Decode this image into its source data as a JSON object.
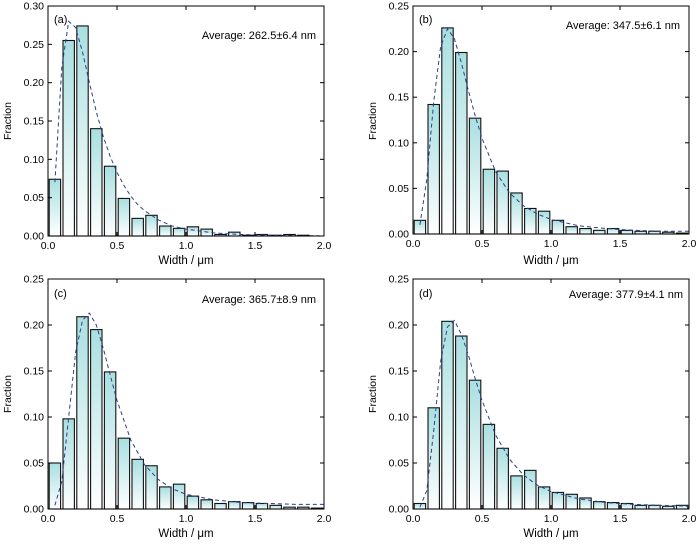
{
  "chart_data": [
    {
      "type": "bar",
      "panel_label": "(a)",
      "annotation": "Average: 262.5±6.4 nm",
      "xlabel": "Width / μm",
      "ylabel": "Fraction",
      "xlim": [
        0,
        2.0
      ],
      "ylim": [
        0,
        0.3
      ],
      "xticks": [
        "0.0",
        "0.5",
        "1.0",
        "1.5",
        "2.0"
      ],
      "yticks": [
        "0.00",
        "0.05",
        "0.10",
        "0.15",
        "0.20",
        "0.25",
        "0.30"
      ],
      "bin_width": 0.1,
      "x": [
        0.05,
        0.15,
        0.25,
        0.35,
        0.45,
        0.55,
        0.65,
        0.75,
        0.85,
        0.95,
        1.05,
        1.15,
        1.25,
        1.35,
        1.45,
        1.55,
        1.65,
        1.75,
        1.85,
        1.95
      ],
      "values": [
        0.074,
        0.255,
        0.274,
        0.14,
        0.091,
        0.049,
        0.023,
        0.027,
        0.013,
        0.01,
        0.012,
        0.009,
        0.002,
        0.005,
        0.001,
        0.002,
        0.001,
        0.002,
        0.001,
        0.0
      ],
      "fit": {
        "style": "dashed",
        "color": "#2b3f8f",
        "x": [
          0.05,
          0.1,
          0.15,
          0.2,
          0.25,
          0.3,
          0.35,
          0.4,
          0.45,
          0.5,
          0.55,
          0.6,
          0.65,
          0.7,
          0.8,
          0.9,
          1.0,
          1.2,
          1.4,
          1.6,
          1.8,
          2.0
        ],
        "y": [
          0.07,
          0.22,
          0.28,
          0.272,
          0.24,
          0.2,
          0.162,
          0.13,
          0.104,
          0.083,
          0.066,
          0.052,
          0.041,
          0.033,
          0.021,
          0.013,
          0.009,
          0.004,
          0.002,
          0.001,
          0.0005,
          0.0002
        ]
      }
    },
    {
      "type": "bar",
      "panel_label": "(b)",
      "annotation": "Average: 347.5±6.1 nm",
      "xlabel": "Width / μm",
      "ylabel": "Fraction",
      "xlim": [
        0,
        2.0
      ],
      "ylim": [
        0,
        0.25
      ],
      "xticks": [
        "0.0",
        "0.5",
        "1.0",
        "1.5",
        "2.0"
      ],
      "yticks": [
        "0.00",
        "0.05",
        "0.10",
        "0.15",
        "0.20",
        "0.25"
      ],
      "bin_width": 0.1,
      "x": [
        0.05,
        0.15,
        0.25,
        0.35,
        0.45,
        0.55,
        0.65,
        0.75,
        0.85,
        0.95,
        1.05,
        1.15,
        1.25,
        1.35,
        1.45,
        1.55,
        1.65,
        1.75,
        1.85,
        1.95
      ],
      "values": [
        0.015,
        0.142,
        0.226,
        0.199,
        0.127,
        0.071,
        0.069,
        0.045,
        0.028,
        0.025,
        0.015,
        0.008,
        0.006,
        0.004,
        0.006,
        0.004,
        0.003,
        0.003,
        0.002,
        0.001
      ],
      "fit": {
        "style": "dashed",
        "color": "#2b3f8f",
        "x": [
          0.05,
          0.1,
          0.15,
          0.2,
          0.25,
          0.3,
          0.35,
          0.4,
          0.45,
          0.5,
          0.6,
          0.7,
          0.8,
          0.9,
          1.0,
          1.2,
          1.4,
          1.6,
          1.8,
          2.0
        ],
        "y": [
          0.01,
          0.06,
          0.145,
          0.205,
          0.225,
          0.214,
          0.188,
          0.158,
          0.13,
          0.105,
          0.068,
          0.045,
          0.031,
          0.022,
          0.016,
          0.009,
          0.006,
          0.004,
          0.003,
          0.003
        ]
      }
    },
    {
      "type": "bar",
      "panel_label": "(c)",
      "annotation": "Average: 365.7±8.9 nm",
      "xlabel": "Width / μm",
      "ylabel": "Fraction",
      "xlim": [
        0,
        2.0
      ],
      "ylim": [
        0,
        0.25
      ],
      "xticks": [
        "0.0",
        "0.5",
        "1.0",
        "1.5",
        "2.0"
      ],
      "yticks": [
        "0.00",
        "0.05",
        "0.10",
        "0.15",
        "0.20",
        "0.25"
      ],
      "bin_width": 0.1,
      "x": [
        0.05,
        0.15,
        0.25,
        0.35,
        0.45,
        0.55,
        0.65,
        0.75,
        0.85,
        0.95,
        1.05,
        1.15,
        1.25,
        1.35,
        1.45,
        1.55,
        1.65,
        1.75,
        1.85,
        1.95
      ],
      "values": [
        0.05,
        0.098,
        0.209,
        0.195,
        0.149,
        0.077,
        0.054,
        0.047,
        0.024,
        0.027,
        0.014,
        0.01,
        0.006,
        0.008,
        0.007,
        0.006,
        0.004,
        0.002,
        0.002,
        0.001
      ],
      "fit": {
        "style": "dashed",
        "color": "#2b3f8f",
        "x": [
          0.05,
          0.1,
          0.15,
          0.2,
          0.25,
          0.3,
          0.35,
          0.4,
          0.45,
          0.5,
          0.6,
          0.7,
          0.8,
          0.9,
          1.0,
          1.2,
          1.4,
          1.6,
          1.8,
          2.0
        ],
        "y": [
          0.004,
          0.03,
          0.1,
          0.17,
          0.205,
          0.213,
          0.2,
          0.175,
          0.146,
          0.118,
          0.075,
          0.048,
          0.032,
          0.022,
          0.016,
          0.01,
          0.007,
          0.006,
          0.005,
          0.005
        ]
      }
    },
    {
      "type": "bar",
      "panel_label": "(d)",
      "annotation": "Average: 377.9±4.1 nm",
      "xlabel": "Width / μm",
      "ylabel": "Fraction",
      "xlim": [
        0,
        2.0
      ],
      "ylim": [
        0,
        0.25
      ],
      "xticks": [
        "0.0",
        "0.5",
        "1.0",
        "1.5",
        "2.0"
      ],
      "yticks": [
        "0.00",
        "0.05",
        "0.10",
        "0.15",
        "0.20",
        "0.25"
      ],
      "bin_width": 0.1,
      "x": [
        0.05,
        0.15,
        0.25,
        0.35,
        0.45,
        0.55,
        0.65,
        0.75,
        0.85,
        0.95,
        1.05,
        1.15,
        1.25,
        1.35,
        1.45,
        1.55,
        1.65,
        1.75,
        1.85,
        1.95
      ],
      "values": [
        0.006,
        0.11,
        0.204,
        0.188,
        0.14,
        0.092,
        0.066,
        0.036,
        0.042,
        0.024,
        0.018,
        0.016,
        0.012,
        0.008,
        0.007,
        0.006,
        0.004,
        0.004,
        0.003,
        0.004
      ],
      "fit": {
        "style": "dashed",
        "color": "#2b3f8f",
        "x": [
          0.05,
          0.1,
          0.15,
          0.2,
          0.25,
          0.3,
          0.35,
          0.4,
          0.45,
          0.5,
          0.6,
          0.7,
          0.8,
          0.9,
          1.0,
          1.2,
          1.4,
          1.6,
          1.8,
          2.0
        ],
        "y": [
          0.002,
          0.02,
          0.085,
          0.16,
          0.198,
          0.205,
          0.19,
          0.168,
          0.142,
          0.118,
          0.08,
          0.054,
          0.037,
          0.026,
          0.019,
          0.011,
          0.007,
          0.005,
          0.004,
          0.003
        ]
      }
    }
  ]
}
